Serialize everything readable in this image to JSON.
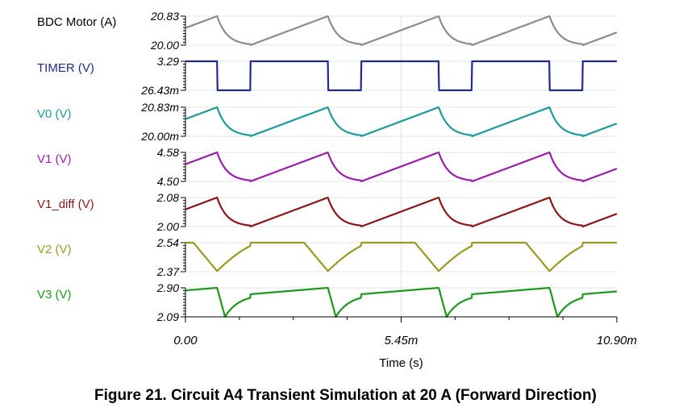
{
  "figure": {
    "caption": "Figure 21. Circuit A4 Transient Simulation at 20 A (Forward Direction)"
  },
  "chart_data": {
    "type": "line",
    "xlabel": "Time (s)",
    "x_unit": "ms",
    "xlim": [
      0,
      10.9
    ],
    "x_ticks": [
      {
        "value": 0,
        "label": "0.00"
      },
      {
        "value": 5.45,
        "label": "5.45m"
      },
      {
        "value": 10.9,
        "label": "10.90m"
      }
    ],
    "grid": true,
    "period_ms": 2.8,
    "duty_high_fraction": 0.7,
    "peak_ms": [
      0.8,
      3.6,
      6.4,
      9.2
    ],
    "series": [
      {
        "name": "BDC Motor (A)",
        "color": "#8c8c8c",
        "ylim": [
          20.0,
          20.83
        ],
        "ytick_labels": [
          "20.83",
          "20.00"
        ],
        "shape": "ramp",
        "low": 20.0,
        "high": 20.83
      },
      {
        "name": "TIMER (V)",
        "color": "#1f2a8c",
        "ylim": [
          0.02643,
          3.29
        ],
        "ytick_labels": [
          "3.29",
          "26.43m"
        ],
        "shape": "square",
        "low": 0.02643,
        "high": 3.29
      },
      {
        "name": "V0 (V)",
        "color": "#1e9a9a",
        "ylim": [
          0.02,
          0.02083
        ],
        "ytick_labels": [
          "20.83m",
          "20.00m"
        ],
        "shape": "ramp",
        "low": 0.02,
        "high": 0.02083
      },
      {
        "name": "V1 (V)",
        "color": "#9a1fa8",
        "ylim": [
          4.5,
          4.58
        ],
        "ytick_labels": [
          "4.58",
          "4.50"
        ],
        "shape": "ramp",
        "low": 4.5,
        "high": 4.58
      },
      {
        "name": "V1_diff (V)",
        "color": "#8a1818",
        "ylim": [
          2.0,
          2.08
        ],
        "ytick_labels": [
          "2.08",
          "2.00"
        ],
        "shape": "ramp",
        "low": 2.0,
        "high": 2.08
      },
      {
        "name": "V2 (V)",
        "color": "#9a9a22",
        "ylim": [
          2.37,
          2.54
        ],
        "ytick_labels": [
          "2.54",
          "2.37"
        ],
        "shape": "inverted",
        "low": 2.37,
        "high": 2.54
      },
      {
        "name": "V3 (V)",
        "color": "#1a9a1a",
        "ylim": [
          2.09,
          2.9
        ],
        "ytick_labels": [
          "2.90",
          "2.09"
        ],
        "shape": "drop",
        "low": 2.09,
        "high": 2.9
      }
    ]
  }
}
